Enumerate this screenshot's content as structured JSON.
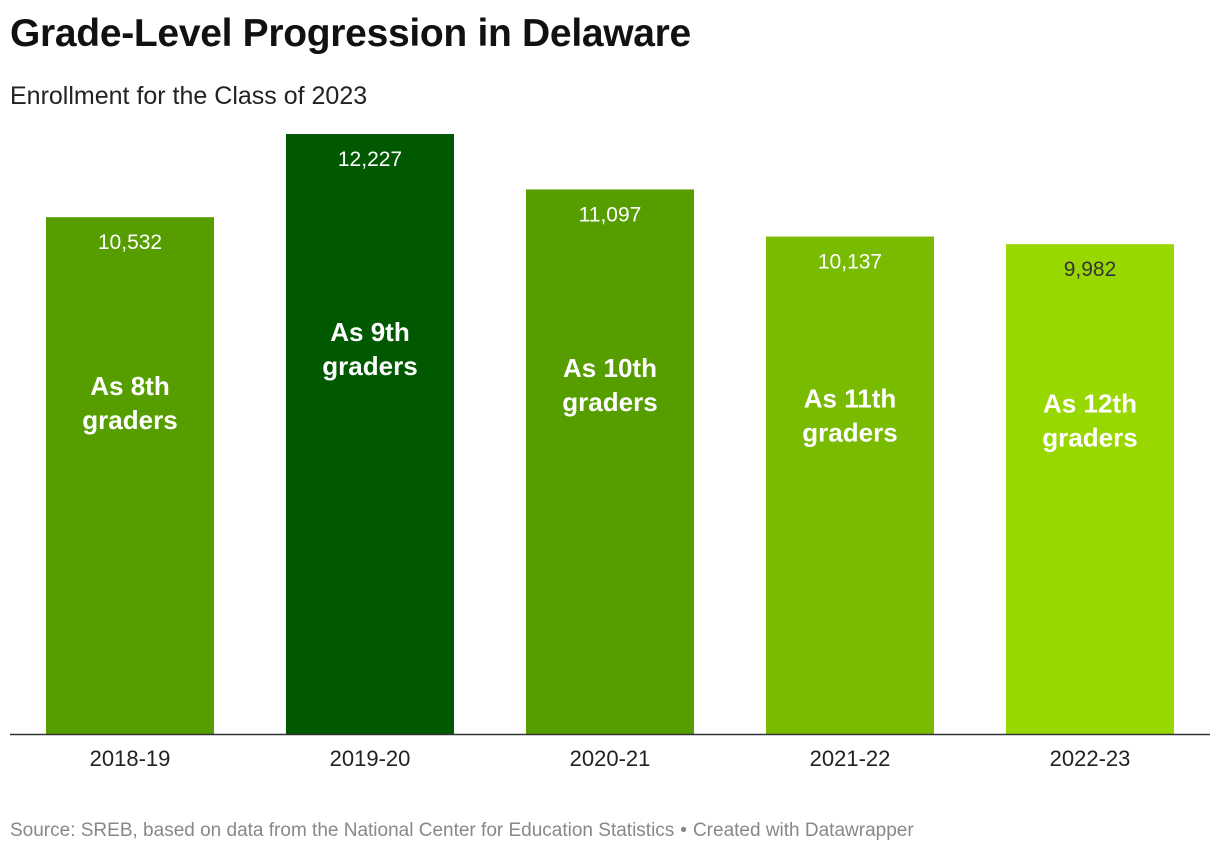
{
  "title": "Grade-Level Progression in Delaware",
  "subtitle": "Enrollment for the Class of 2023",
  "source": {
    "text": "Source: SREB, based on data from the National Center for Education Statistics",
    "separator": "•",
    "credit": "Created with Datawrapper"
  },
  "chart_data": {
    "type": "bar",
    "categories": [
      "2018-19",
      "2019-20",
      "2020-21",
      "2021-22",
      "2022-23"
    ],
    "values": [
      10532,
      12227,
      11097,
      10137,
      9982
    ],
    "value_labels": [
      "10,532",
      "12,227",
      "11,097",
      "10,137",
      "9,982"
    ],
    "bar_labels": [
      [
        "As 8th",
        "graders"
      ],
      [
        "As 9th",
        "graders"
      ],
      [
        "As 10th",
        "graders"
      ],
      [
        "As 11th",
        "graders"
      ],
      [
        "As 12th",
        "graders"
      ]
    ],
    "colors": [
      "#569e00",
      "#005900",
      "#569e00",
      "#78bb00",
      "#98d700"
    ],
    "value_label_colors": [
      "#ffffff",
      "#ffffff",
      "#ffffff",
      "#ffffff",
      "#333333"
    ],
    "ylim": [
      0,
      12227
    ],
    "grid": false,
    "title": "Grade-Level Progression in Delaware",
    "xlabel": "",
    "ylabel": ""
  }
}
